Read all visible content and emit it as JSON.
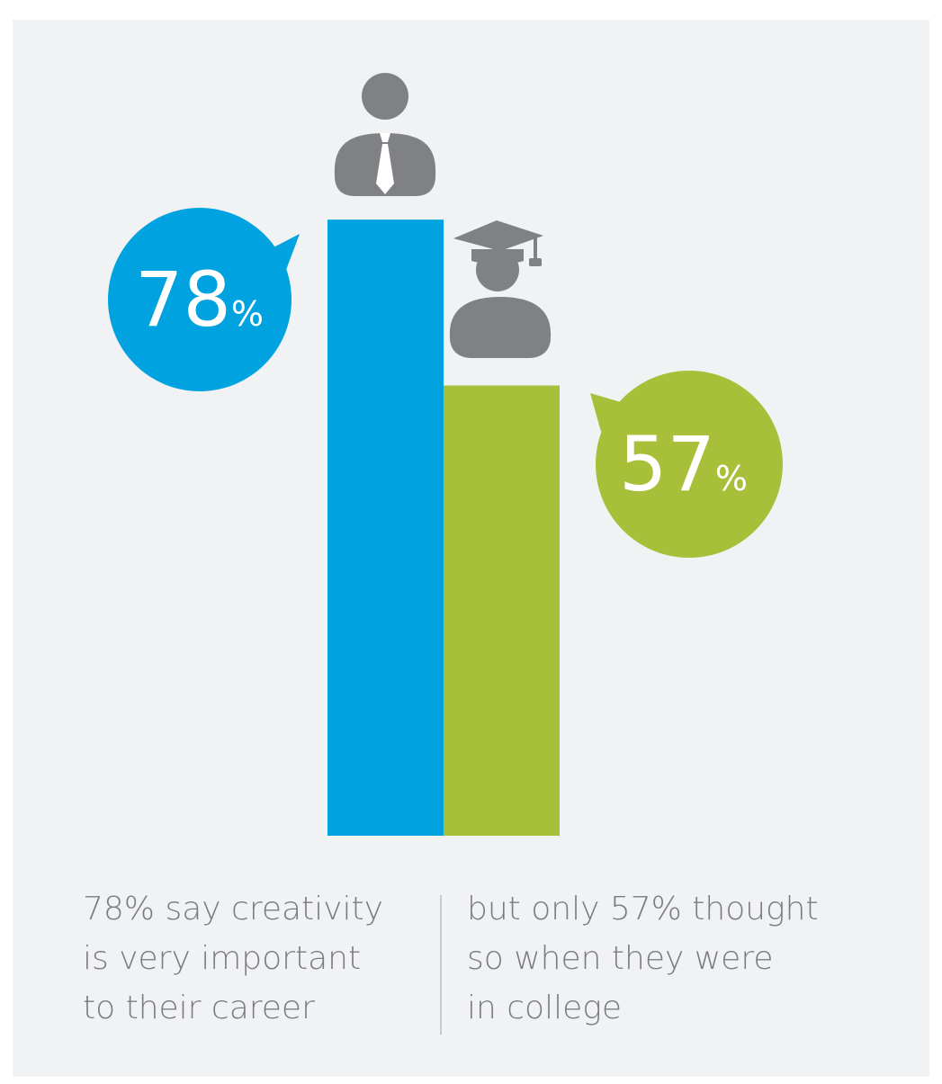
{
  "chart_data": {
    "type": "bar",
    "categories": [
      "career",
      "college"
    ],
    "values": [
      78,
      57
    ],
    "value_labels": [
      {
        "number": "78",
        "unit": "%"
      },
      {
        "number": "57",
        "unit": "%"
      }
    ],
    "colors": [
      "#00a3df",
      "#a8bf3a"
    ],
    "icons": [
      "professional-person-icon",
      "graduate-person-icon"
    ],
    "ylim": [
      0,
      100
    ],
    "grid": false,
    "axes_visible": false
  },
  "captions": {
    "left": [
      "78% say creativity",
      "is very important",
      "to their career"
    ],
    "right": [
      "but only 57% thought",
      "so when they were",
      "in college"
    ]
  },
  "colors": {
    "background": "#f1f2f4",
    "icon": "#808184",
    "caption_text": "#7b7c80"
  }
}
